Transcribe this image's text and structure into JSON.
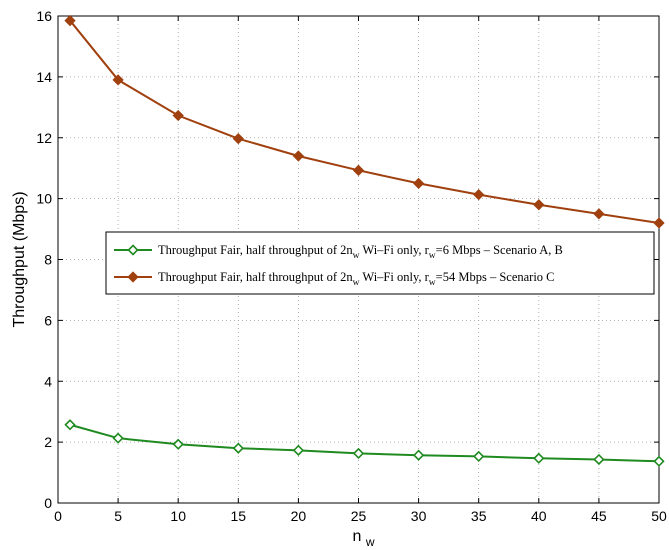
{
  "chart_data": {
    "type": "line",
    "xlabel": "n",
    "xlabel_sub": "w",
    "ylabel": "Throughput (Mbps)",
    "xlim": [
      0,
      50
    ],
    "ylim": [
      0,
      16
    ],
    "xticks": [
      0,
      5,
      10,
      15,
      20,
      25,
      30,
      35,
      40,
      45,
      50
    ],
    "yticks": [
      0,
      2,
      4,
      6,
      8,
      10,
      12,
      14,
      16
    ],
    "grid": true,
    "legend_position": "center-right",
    "x": [
      1,
      5,
      10,
      15,
      20,
      25,
      30,
      35,
      40,
      45,
      50
    ],
    "series": [
      {
        "name": "Throughput Fair, half throughput of 2n_w Wi–Fi only, r_w=6 Mbps – Scenario A, B",
        "legend_parts": [
          {
            "t": "Throughput Fair, half throughput of 2n",
            "sub": false
          },
          {
            "t": "w",
            "sub": true
          },
          {
            "t": " Wi–Fi only, r",
            "sub": false
          },
          {
            "t": "w",
            "sub": true
          },
          {
            "t": "=6 Mbps – Scenario A, B",
            "sub": false
          }
        ],
        "color": "#1f8a1f",
        "marker": "diamond-open",
        "values": [
          2.57,
          2.13,
          1.93,
          1.8,
          1.73,
          1.63,
          1.57,
          1.53,
          1.47,
          1.43,
          1.37
        ]
      },
      {
        "name": "Throughput Fair, half throughput of 2n_w Wi–Fi only, r_w=54 Mbps – Scenario C",
        "legend_parts": [
          {
            "t": "Throughput Fair, half throughput of 2n",
            "sub": false
          },
          {
            "t": "w",
            "sub": true
          },
          {
            "t": " Wi–Fi only, r",
            "sub": false
          },
          {
            "t": "w",
            "sub": true
          },
          {
            "t": "=54 Mbps – Scenario C",
            "sub": false
          }
        ],
        "color": "#a0400e",
        "marker": "diamond-filled",
        "values": [
          15.85,
          13.9,
          12.73,
          11.97,
          11.4,
          10.93,
          10.5,
          10.13,
          9.8,
          9.5,
          9.2
        ]
      }
    ]
  }
}
